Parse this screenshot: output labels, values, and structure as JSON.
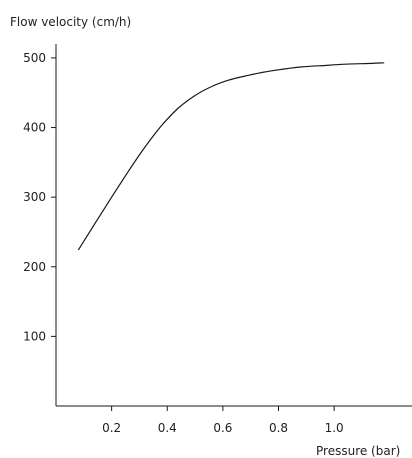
{
  "chart_data": {
    "type": "line",
    "title": "",
    "xlabel": "Pressure (bar)",
    "ylabel": "Flow velocity (cm/h)",
    "xlim": [
      0,
      1.28
    ],
    "ylim": [
      0,
      520
    ],
    "x_ticks": [
      0.2,
      0.4,
      0.6,
      0.8,
      1.0
    ],
    "x_tick_labels": [
      "0.2",
      "0.4",
      "0.6",
      "0.8",
      "1.0"
    ],
    "y_ticks": [
      100,
      200,
      300,
      400,
      500
    ],
    "y_tick_labels": [
      "100",
      "200",
      "300",
      "400",
      "500"
    ],
    "grid": false,
    "series": [
      {
        "color": "#1a1a1a",
        "x": [
          0.08,
          0.14,
          0.2,
          0.26,
          0.32,
          0.38,
          0.44,
          0.5,
          0.56,
          0.62,
          0.68,
          0.74,
          0.8,
          0.88,
          0.96,
          1.04,
          1.12,
          1.18
        ],
        "values": [
          224,
          262,
          300,
          337,
          372,
          403,
          428,
          446,
          459,
          468,
          474,
          479,
          483,
          487,
          489,
          491,
          492,
          493
        ]
      }
    ]
  }
}
